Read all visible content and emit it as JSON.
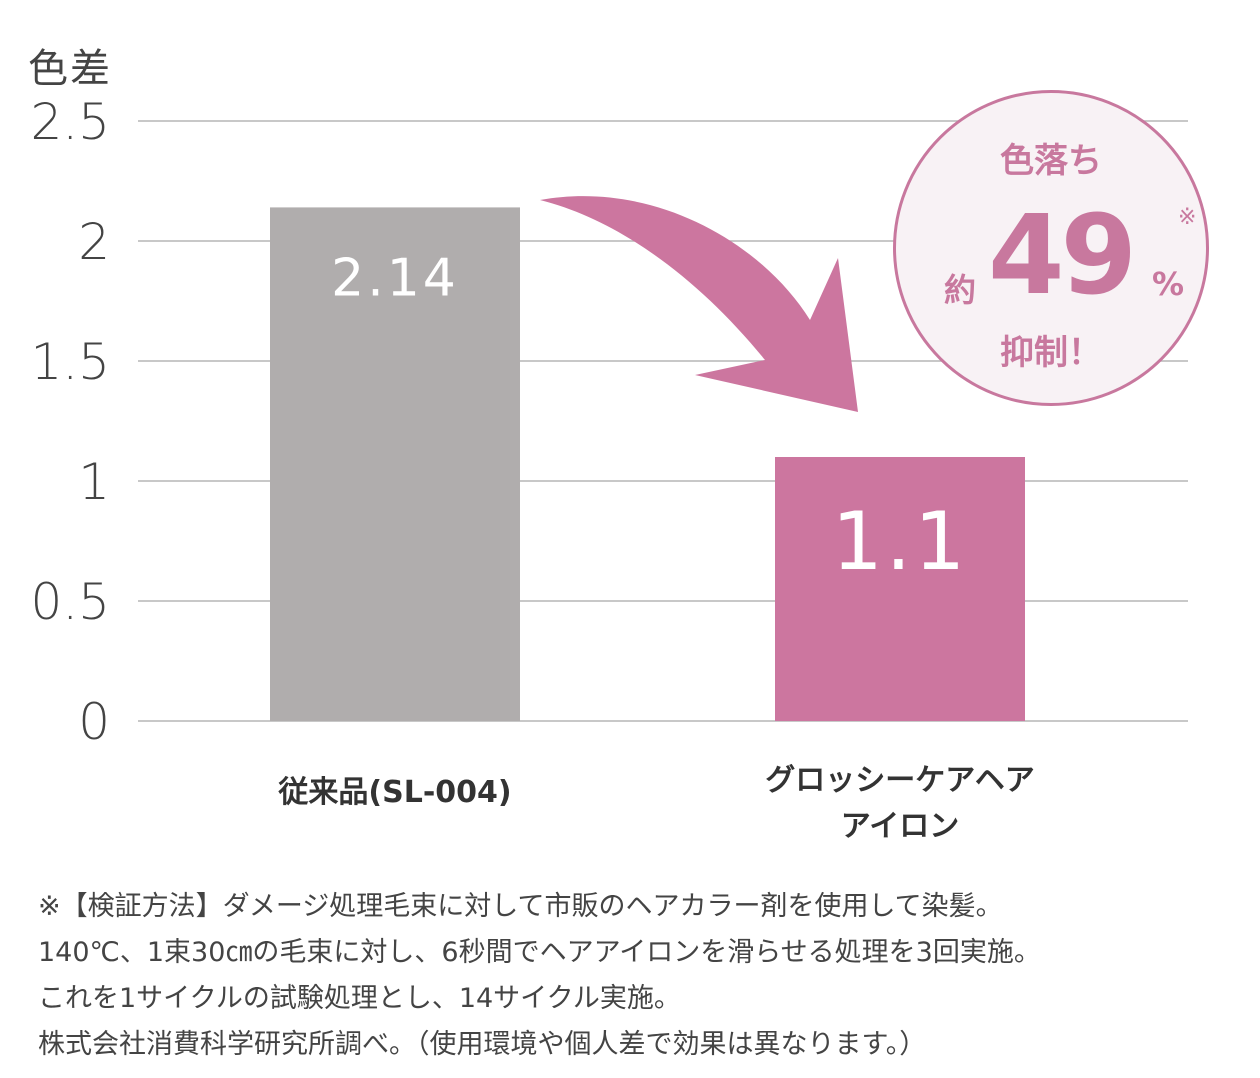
{
  "chart_data": {
    "type": "bar",
    "ylabel": "色差",
    "ylim": [
      0,
      2.5
    ],
    "yticks": [
      0,
      0.5,
      1,
      1.5,
      2,
      2.5
    ],
    "ytick_labels": [
      "0",
      "0.5",
      "1",
      "1.5",
      "2",
      "2.5"
    ],
    "grid": true,
    "categories": [
      {
        "lines": [
          "従来品(SL-004)"
        ]
      },
      {
        "lines": [
          "グロッシーケアヘア",
          "アイロン"
        ]
      }
    ],
    "values": [
      2.14,
      1.1
    ],
    "data_labels": [
      "2.14",
      "1.1"
    ],
    "colors": [
      "#b0adad",
      "#cc769f"
    ],
    "annotation": {
      "top": "色落ち",
      "prefix": "約",
      "number": "49",
      "unit": "%",
      "mark": "※",
      "bottom": "抑制！",
      "accent_color": "#c8789e"
    }
  },
  "footnote": [
    "※【検証方法】ダメージ処理毛束に対して市販のヘアカラー剤を使用して染髪。",
    "140℃、1束30㎝の毛束に対し、6秒間でヘアアイロンを滑らせる処理を3回実施。",
    "これを1サイクルの試験処理とし、14サイクル実施。",
    "株式会社消費科学研究所調べ。（使用環境や個人差で効果は異なります。）"
  ]
}
